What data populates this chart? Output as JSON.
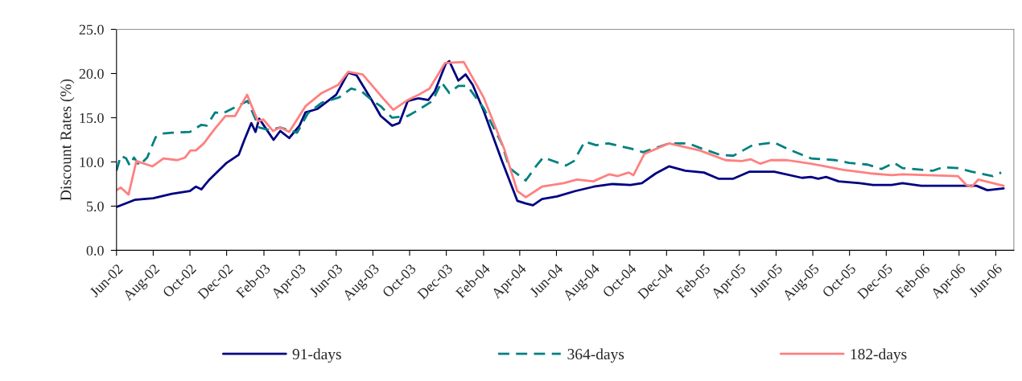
{
  "chart_data": {
    "type": "line",
    "ylabel": "Discount Rates (%)",
    "xlim": [
      "2002-06-01",
      "2006-07-01"
    ],
    "xticks": [
      {
        "value": "2002-06-01",
        "label": "Jun-02"
      },
      {
        "value": "2002-08-01",
        "label": "Aug-02"
      },
      {
        "value": "2002-10-01",
        "label": "Oct-02"
      },
      {
        "value": "2002-12-01",
        "label": "Dec-02"
      },
      {
        "value": "2003-02-01",
        "label": "Feb-03"
      },
      {
        "value": "2003-04-01",
        "label": "Apr-03"
      },
      {
        "value": "2003-06-01",
        "label": "Jun-03"
      },
      {
        "value": "2003-08-01",
        "label": "Aug-03"
      },
      {
        "value": "2003-10-01",
        "label": "Oct-03"
      },
      {
        "value": "2003-12-01",
        "label": "Dec-03"
      },
      {
        "value": "2004-02-01",
        "label": "Feb-04"
      },
      {
        "value": "2004-04-01",
        "label": "Apr-04"
      },
      {
        "value": "2004-06-01",
        "label": "Jun-04"
      },
      {
        "value": "2004-08-01",
        "label": "Aug-04"
      },
      {
        "value": "2004-10-01",
        "label": "Oct-04"
      },
      {
        "value": "2004-12-01",
        "label": "Dec-04"
      },
      {
        "value": "2005-02-01",
        "label": "Feb-05"
      },
      {
        "value": "2005-04-01",
        "label": "Apr-05"
      },
      {
        "value": "2005-06-01",
        "label": "Jun-05"
      },
      {
        "value": "2005-08-01",
        "label": "Aug-05"
      },
      {
        "value": "2005-10-01",
        "label": "Oct-05"
      },
      {
        "value": "2005-12-01",
        "label": "Dec-05"
      },
      {
        "value": "2006-02-01",
        "label": "Feb-06"
      },
      {
        "value": "2006-04-01",
        "label": "Apr-06"
      },
      {
        "value": "2006-06-01",
        "label": "Jun-06"
      }
    ],
    "ylim": [
      0,
      25
    ],
    "yticks": [
      {
        "value": 0,
        "label": "0.0"
      },
      {
        "value": 5,
        "label": "5.0"
      },
      {
        "value": 10,
        "label": "10.0"
      },
      {
        "value": 15,
        "label": "15.0"
      },
      {
        "value": 20,
        "label": "20.0"
      },
      {
        "value": 25,
        "label": "25.0"
      }
    ],
    "grid": false,
    "legend": "bottom",
    "marker": "none",
    "series": [
      {
        "name": "91-days",
        "color": "#000080",
        "line_style": "solid",
        "x": [
          "2002-06-01",
          "2002-07-01",
          "2002-08-01",
          "2002-09-01",
          "2002-10-01",
          "2002-10-11",
          "2002-10-20",
          "2002-11-01",
          "2002-12-01",
          "2002-12-21",
          "2002-12-30",
          "2003-01-11",
          "2003-01-18",
          "2003-01-24",
          "2003-02-01",
          "2003-02-17",
          "2003-02-28",
          "2003-03-15",
          "2003-04-01",
          "2003-04-11",
          "2003-05-01",
          "2003-06-01",
          "2003-06-21",
          "2003-07-05",
          "2003-07-30",
          "2003-08-14",
          "2003-09-02",
          "2003-09-14",
          "2003-09-28",
          "2003-10-16",
          "2003-11-01",
          "2003-11-12",
          "2003-11-30",
          "2003-12-06",
          "2003-12-21",
          "2004-01-02",
          "2004-01-14",
          "2004-02-01",
          "2004-03-02",
          "2004-03-28",
          "2004-04-11",
          "2004-04-23",
          "2004-05-08",
          "2004-06-02",
          "2004-07-02",
          "2004-08-02",
          "2004-09-02",
          "2004-10-02",
          "2004-10-21",
          "2004-11-13",
          "2004-12-05",
          "2005-01-01",
          "2005-02-01",
          "2005-02-25",
          "2005-03-22",
          "2005-04-18",
          "2005-05-29",
          "2005-07-14",
          "2005-07-29",
          "2005-08-10",
          "2005-08-23",
          "2005-09-13",
          "2005-10-18",
          "2005-11-09",
          "2005-12-10",
          "2005-12-28",
          "2006-01-28",
          "2006-03-08",
          "2006-04-30",
          "2006-05-18",
          "2006-06-14"
        ],
        "values": [
          4.9,
          5.7,
          5.9,
          6.4,
          6.7,
          7.2,
          6.9,
          7.9,
          9.9,
          10.8,
          12.4,
          14.4,
          13.4,
          14.9,
          14.1,
          12.5,
          13.5,
          12.7,
          14.1,
          15.6,
          16.0,
          17.6,
          20.1,
          19.8,
          17.0,
          15.2,
          14.1,
          14.4,
          16.9,
          17.2,
          17.0,
          18.0,
          21.1,
          21.4,
          19.2,
          19.9,
          18.7,
          15.8,
          10.2,
          5.6,
          5.3,
          5.1,
          5.8,
          6.1,
          6.7,
          7.2,
          7.5,
          7.4,
          7.6,
          8.7,
          9.5,
          9.0,
          8.8,
          8.1,
          8.1,
          8.9,
          8.9,
          8.2,
          8.3,
          8.1,
          8.3,
          7.8,
          7.6,
          7.4,
          7.4,
          7.6,
          7.3,
          7.3,
          7.3,
          6.8,
          7.0
        ]
      },
      {
        "name": "364-days",
        "color": "#008080",
        "line_style": "dashed",
        "x": [
          "2002-06-01",
          "2002-06-08",
          "2002-06-17",
          "2002-06-23",
          "2002-06-30",
          "2002-07-09",
          "2002-07-22",
          "2002-08-05",
          "2002-08-16",
          "2002-09-01",
          "2002-10-01",
          "2002-10-20",
          "2002-10-29",
          "2002-11-12",
          "2002-11-25",
          "2002-12-21",
          "2003-01-05",
          "2003-01-24",
          "2003-02-10",
          "2003-02-28",
          "2003-03-28",
          "2003-04-15",
          "2003-05-08",
          "2003-06-06",
          "2003-06-26",
          "2003-07-13",
          "2003-07-30",
          "2003-08-14",
          "2003-09-02",
          "2003-09-28",
          "2003-10-16",
          "2003-11-08",
          "2003-11-23",
          "2003-12-06",
          "2003-12-21",
          "2004-01-05",
          "2004-02-01",
          "2004-03-02",
          "2004-03-15",
          "2004-04-11",
          "2004-04-29",
          "2004-05-10",
          "2004-06-17",
          "2004-06-30",
          "2004-07-18",
          "2004-08-06",
          "2004-08-26",
          "2004-10-03",
          "2004-10-23",
          "2004-12-05",
          "2005-01-06",
          "2005-01-25",
          "2005-02-28",
          "2005-03-22",
          "2005-04-23",
          "2005-05-29",
          "2005-06-19",
          "2005-07-29",
          "2005-09-08",
          "2005-09-30",
          "2005-10-31",
          "2005-11-23",
          "2005-12-14",
          "2005-12-28",
          "2006-02-16",
          "2006-03-05",
          "2006-03-30",
          "2006-04-22",
          "2006-05-27",
          "2006-06-10"
        ],
        "values": [
          9.0,
          10.7,
          10.4,
          9.6,
          10.5,
          9.6,
          10.5,
          12.8,
          13.2,
          13.3,
          13.4,
          14.2,
          14.1,
          15.6,
          15.5,
          16.4,
          16.9,
          13.9,
          13.6,
          13.9,
          13.3,
          15.5,
          16.7,
          17.3,
          18.3,
          18.0,
          17.0,
          16.3,
          15.0,
          15.2,
          15.9,
          16.9,
          19.0,
          17.8,
          18.6,
          18.6,
          16.1,
          12.1,
          9.3,
          7.9,
          9.6,
          10.5,
          9.6,
          10.1,
          12.3,
          11.9,
          12.1,
          11.5,
          11.1,
          12.1,
          12.1,
          11.6,
          10.8,
          10.7,
          11.9,
          12.2,
          11.5,
          10.4,
          10.2,
          9.9,
          9.7,
          9.2,
          9.9,
          9.3,
          9.0,
          9.4,
          9.3,
          8.9,
          8.4,
          8.8
        ]
      },
      {
        "name": "182-days",
        "color": "#ff8080",
        "line_style": "solid",
        "x": [
          "2002-06-01",
          "2002-06-08",
          "2002-06-21",
          "2002-07-04",
          "2002-07-31",
          "2002-08-18",
          "2002-09-10",
          "2002-09-23",
          "2002-10-02",
          "2002-10-11",
          "2002-10-24",
          "2002-11-12",
          "2002-11-29",
          "2002-12-15",
          "2003-01-04",
          "2003-01-22",
          "2003-01-31",
          "2003-02-16",
          "2003-02-28",
          "2003-03-15",
          "2003-04-11",
          "2003-05-08",
          "2003-06-04",
          "2003-06-21",
          "2003-07-15",
          "2003-08-14",
          "2003-09-04",
          "2003-09-28",
          "2003-10-16",
          "2003-11-03",
          "2003-11-29",
          "2003-12-30",
          "2004-02-01",
          "2004-03-06",
          "2004-03-28",
          "2004-04-11",
          "2004-05-08",
          "2004-06-13",
          "2004-07-05",
          "2004-08-01",
          "2004-08-28",
          "2004-09-11",
          "2004-09-29",
          "2004-10-07",
          "2004-10-25",
          "2004-12-05",
          "2005-01-06",
          "2005-01-25",
          "2005-03-09",
          "2005-04-05",
          "2005-04-20",
          "2005-05-06",
          "2005-05-23",
          "2005-06-19",
          "2005-07-29",
          "2005-09-21",
          "2005-11-05",
          "2005-12-10",
          "2005-12-28",
          "2006-03-30",
          "2006-04-13",
          "2006-04-22",
          "2006-05-03",
          "2006-06-14"
        ],
        "values": [
          6.8,
          7.1,
          6.3,
          10.1,
          9.5,
          10.4,
          10.2,
          10.5,
          11.3,
          11.3,
          12.1,
          13.8,
          15.2,
          15.2,
          17.6,
          14.6,
          14.8,
          13.5,
          13.9,
          13.4,
          16.3,
          17.8,
          18.7,
          20.2,
          19.9,
          17.5,
          15.9,
          17.0,
          17.6,
          18.3,
          21.2,
          21.3,
          17.3,
          11.5,
          6.7,
          6.0,
          7.2,
          7.6,
          8.0,
          7.8,
          8.6,
          8.4,
          8.8,
          8.5,
          10.9,
          12.1,
          11.6,
          11.3,
          10.2,
          10.1,
          10.3,
          9.8,
          10.2,
          10.2,
          9.8,
          9.1,
          8.7,
          8.5,
          8.6,
          8.4,
          7.4,
          7.2,
          8.0,
          7.3
        ]
      }
    ]
  }
}
